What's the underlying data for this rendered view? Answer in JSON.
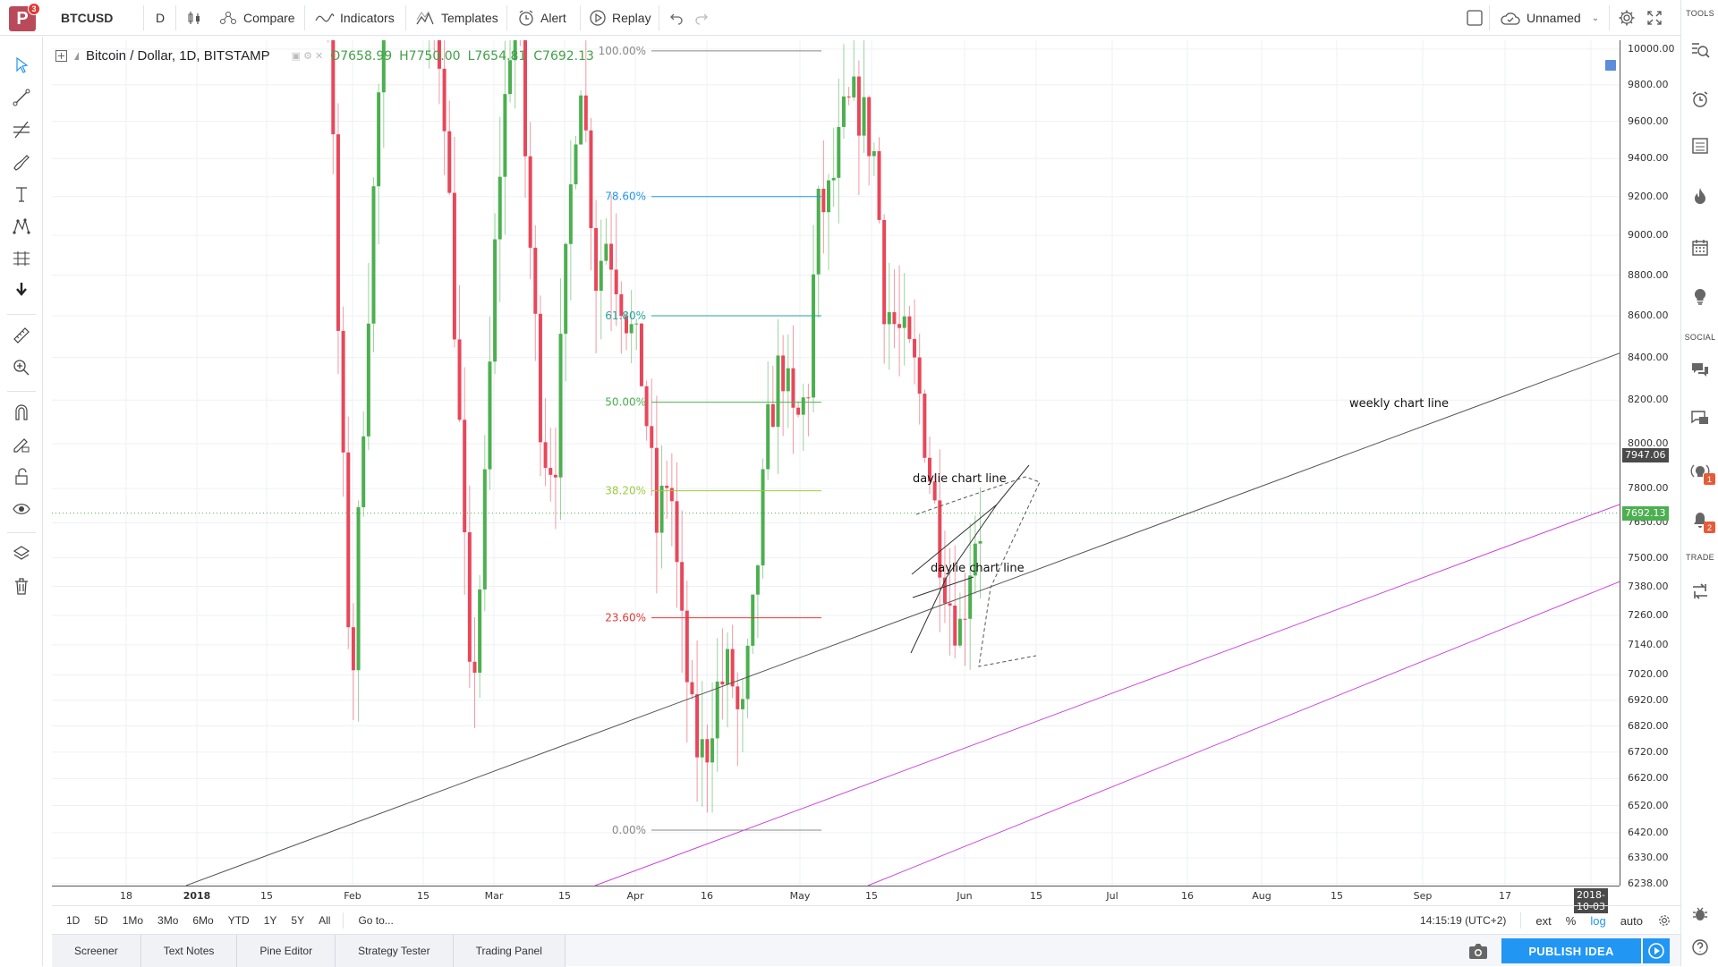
{
  "topbar": {
    "logo_letter": "P",
    "logo_badge": "3",
    "symbol": "BTCUSD",
    "interval": "D",
    "compare": "Compare",
    "indicators": "Indicators",
    "templates": "Templates",
    "alert": "Alert",
    "replay": "Replay",
    "layout_name": "Unnamed"
  },
  "legend": {
    "title": "Bitcoin / Dollar, 1D, BITSTAMP",
    "o": "O7658.99",
    "h": "H7750.00",
    "l": "L7654.81",
    "c": "C7692.13"
  },
  "right_sidebar": {
    "tools_label": "TOOLS",
    "social_label": "SOCIAL",
    "trade_label": "TRADE",
    "ideas_badge": "1",
    "alerts_badge": "2"
  },
  "colors": {
    "up": "#4caf50",
    "down": "#e8475a",
    "trend_line": "#555555",
    "channel": "#cc44dd",
    "fib_0": "#888888",
    "fib_236": "#e53935",
    "fib_382": "#9ccc3d",
    "fib_50": "#4caf50",
    "fib_618": "#26a69a",
    "fib_786": "#2196f3",
    "fib_100": "#888888"
  },
  "chart_data": {
    "type": "candlestick",
    "title": "Bitcoin / Dollar, 1D, BITSTAMP",
    "y_scale": "log",
    "ylim": [
      6200,
      10050
    ],
    "price_ticks": [
      10000,
      9800,
      9600,
      9400,
      9200,
      9000,
      8800,
      8600,
      8400,
      8200,
      8000,
      7800,
      7650,
      7500,
      7380,
      7260,
      7140,
      7020,
      6920,
      6820,
      6720,
      6620,
      6520,
      6420,
      6330,
      6238
    ],
    "time_ticks": [
      "18",
      "2018",
      "15",
      "Feb",
      "15",
      "Mar",
      "15",
      "Apr",
      "16",
      "May",
      "15",
      "Jun",
      "15",
      "Jul",
      "16",
      "Aug",
      "15",
      "Sep",
      "17",
      "2018-10-03"
    ],
    "last_price_label": "7692.13",
    "crosshair_price_label": "7947.06",
    "last_close": 7692.13,
    "fib_levels": [
      {
        "label": "100.00%",
        "price": 9990
      },
      {
        "label": "78.60%",
        "price": 9200
      },
      {
        "label": "61.80%",
        "price": 8600
      },
      {
        "label": "50.00%",
        "price": 8190
      },
      {
        "label": "38.20%",
        "price": 7790
      },
      {
        "label": "23.60%",
        "price": 7250
      },
      {
        "label": "0.00%",
        "price": 6430
      }
    ],
    "annotations": [
      {
        "text": "weekly chart line"
      },
      {
        "text": "daylie chart line"
      },
      {
        "text": "daylie chart line"
      }
    ]
  },
  "range_bar": {
    "ranges": [
      "1D",
      "5D",
      "1Mo",
      "3Mo",
      "6Mo",
      "YTD",
      "1Y",
      "5Y",
      "All"
    ],
    "goto": "Go to...",
    "clock": "14:15:19 (UTC+2)",
    "ext": "ext",
    "percent": "%",
    "log": "log",
    "auto": "auto"
  },
  "bottom_tabs": [
    "Screener",
    "Text Notes",
    "Pine Editor",
    "Strategy Tester",
    "Trading Panel"
  ],
  "publish_label": "PUBLISH IDEA"
}
